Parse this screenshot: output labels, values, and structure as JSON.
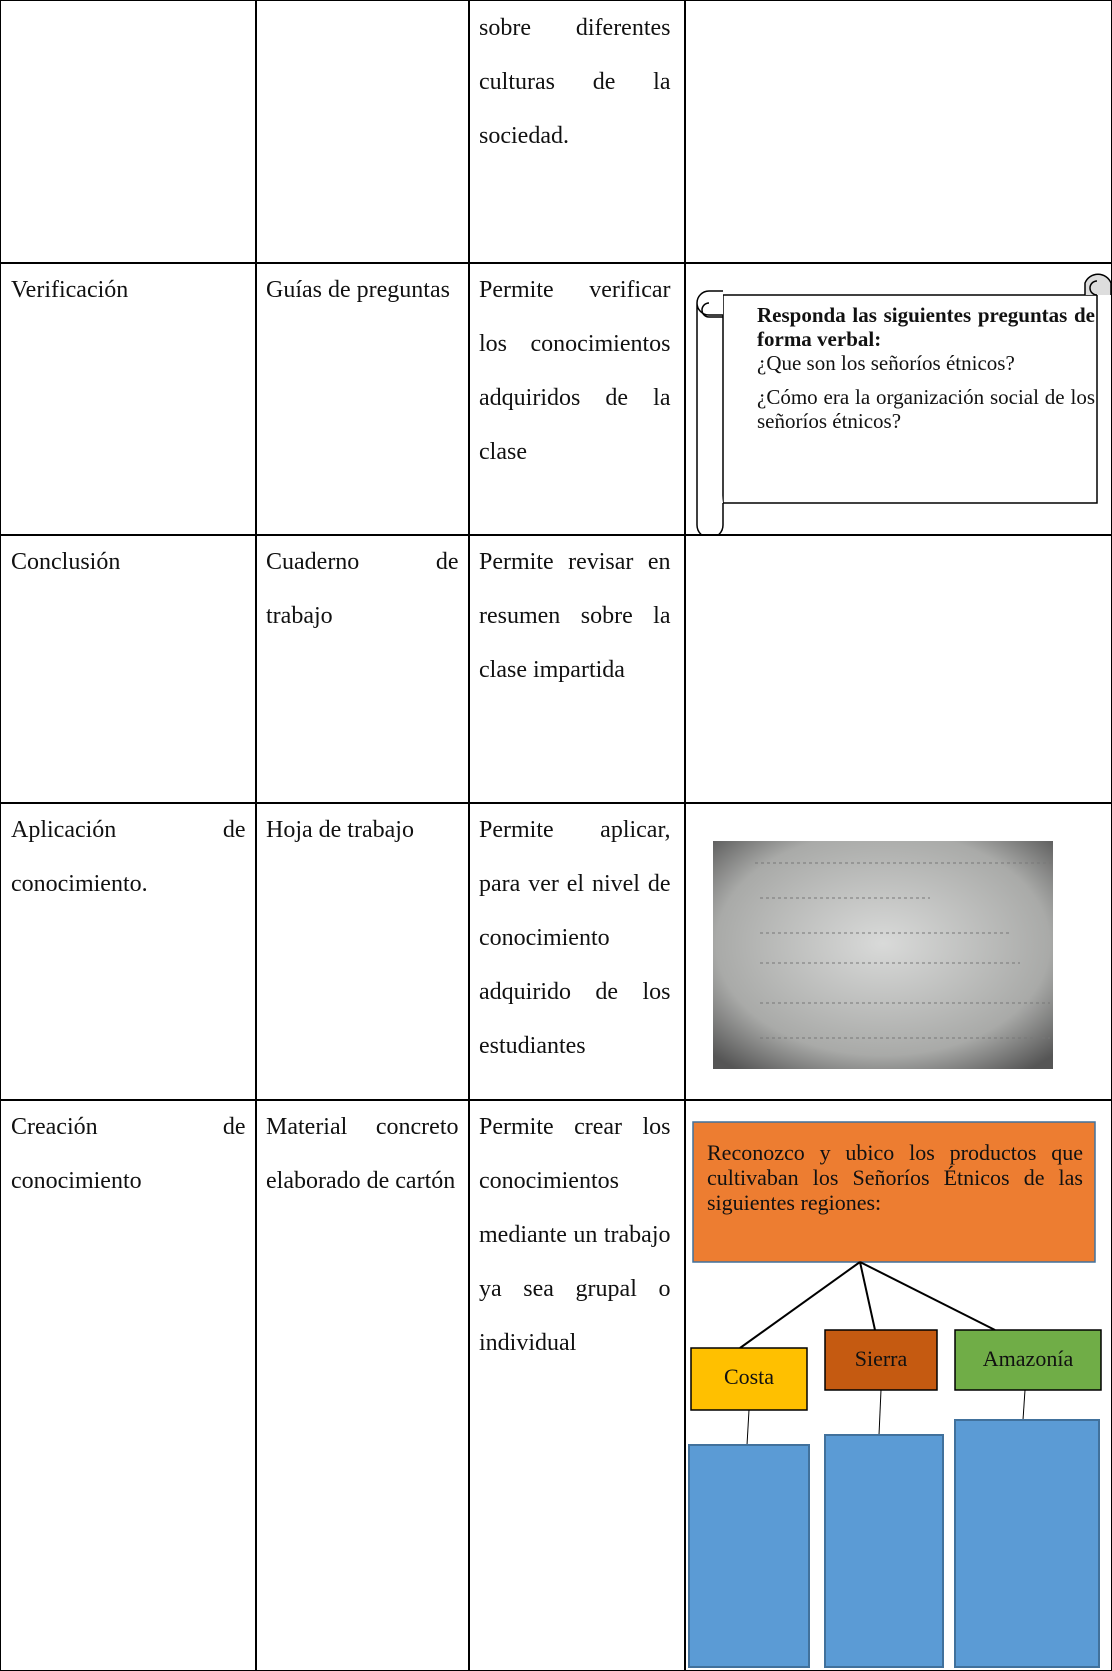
{
  "table": {
    "rows": [
      {
        "descripcion": "sobre diferentes culturas de la sociedad."
      },
      {
        "fase": "Verificación",
        "recurso": "Guías de preguntas",
        "descripcion": "Permite verificar los conocimientos adquiridos de la clase"
      },
      {
        "fase": "Conclusión",
        "recurso": "Cuaderno de trabajo",
        "descripcion": "Permite revisar en resumen sobre la clase impartida"
      },
      {
        "fase": "Aplicación de conocimiento.",
        "recurso": "Hoja de trabajo",
        "descripcion": "Permite aplicar, para ver el nivel de conocimiento adquirido de los estudiantes"
      },
      {
        "fase": "Creación de conocimiento",
        "recurso": "Material concreto elaborado de cartón",
        "descripcion": "Permite crear los conocimientos mediante un trabajo ya sea grupal o individual"
      }
    ]
  },
  "scroll": {
    "heading": "Responda las siguientes preguntas de forma verbal:",
    "questions": [
      "¿Que son los señoríos étnicos?",
      "¿Cómo era la organización social de los señoríos étnicos?"
    ]
  },
  "diagram": {
    "title": "Reconozco y ubico los productos que cultivaban los Señoríos Étnicos de las siguientes regiones:",
    "regions": [
      "Costa",
      "Sierra",
      "Amazonía"
    ]
  }
}
